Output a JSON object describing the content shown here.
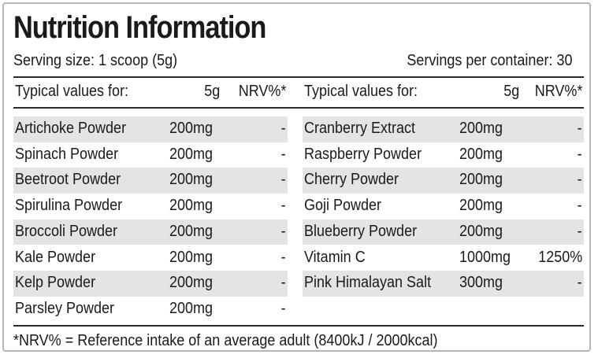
{
  "title": "Nutrition Information",
  "serving_size": "Serving size: 1 scoop (5g)",
  "servings_per_container": "Servings per container: 30",
  "header": {
    "typical_values": "Typical values for:",
    "amount": "5g",
    "nrv": "NRV%*"
  },
  "left_rows": [
    {
      "name": "Artichoke Powder",
      "amount": "200mg",
      "nrv": "-"
    },
    {
      "name": "Spinach Powder",
      "amount": "200mg",
      "nrv": "-"
    },
    {
      "name": "Beetroot Powder",
      "amount": "200mg",
      "nrv": "-"
    },
    {
      "name": "Spirulina Powder",
      "amount": "200mg",
      "nrv": "-"
    },
    {
      "name": "Broccoli Powder",
      "amount": "200mg",
      "nrv": "-"
    },
    {
      "name": "Kale Powder",
      "amount": "200mg",
      "nrv": "-"
    },
    {
      "name": "Kelp Powder",
      "amount": "200mg",
      "nrv": "-"
    },
    {
      "name": "Parsley Powder",
      "amount": "200mg",
      "nrv": "-"
    }
  ],
  "right_rows": [
    {
      "name": "Cranberry Extract",
      "amount": "200mg",
      "nrv": "-"
    },
    {
      "name": "Raspberry Powder",
      "amount": "200mg",
      "nrv": "-"
    },
    {
      "name": "Cherry Powder",
      "amount": "200mg",
      "nrv": "-"
    },
    {
      "name": "Goji Powder",
      "amount": "200mg",
      "nrv": "-"
    },
    {
      "name": "Blueberry Powder",
      "amount": "200mg",
      "nrv": "-"
    },
    {
      "name": "Vitamin C",
      "amount": "1000mg",
      "nrv": "1250%"
    },
    {
      "name": "Pink Himalayan Salt",
      "amount": "300mg",
      "nrv": "-"
    }
  ],
  "footnote": "*NRV% = Reference intake of an average adult (8400kJ / 2000kcal)",
  "colors": {
    "shade": "#e4e4e4",
    "border": "#b5b5b5",
    "rule": "#2a2a2a"
  }
}
